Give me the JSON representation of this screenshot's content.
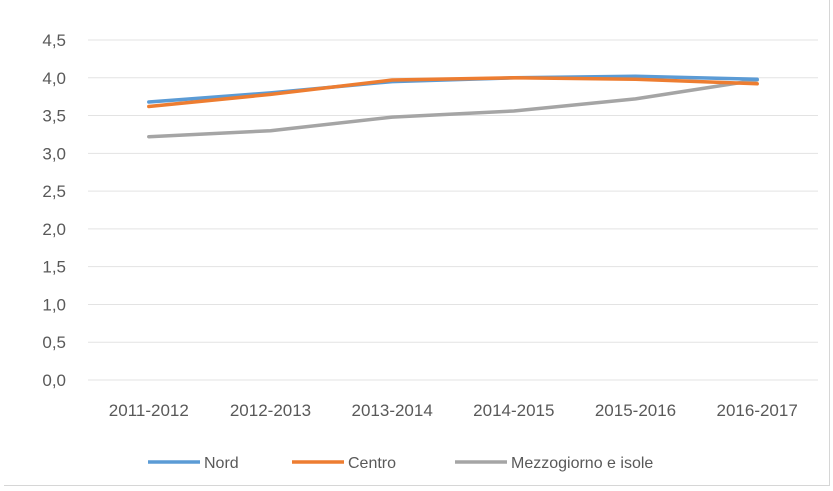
{
  "chart_data": {
    "type": "line",
    "title": "",
    "xlabel": "",
    "ylabel": "",
    "categories": [
      "2011-2012",
      "2012-2013",
      "2013-2014",
      "2014-2015",
      "2015-2016",
      "2016-2017"
    ],
    "y_ticks": [
      "0,0",
      "0,5",
      "1,0",
      "1,5",
      "2,0",
      "2,5",
      "3,0",
      "3,5",
      "4,0",
      "4,5"
    ],
    "ylim": [
      0,
      4.5
    ],
    "grid": true,
    "legend_position": "bottom",
    "series": [
      {
        "name": "Nord",
        "color": "#5b9bd5",
        "values": [
          3.68,
          3.8,
          3.95,
          4.0,
          4.02,
          3.98
        ]
      },
      {
        "name": "Centro",
        "color": "#ed7d31",
        "values": [
          3.62,
          3.78,
          3.97,
          4.0,
          3.98,
          3.92
        ]
      },
      {
        "name": "Mezzogiorno e isole",
        "color": "#a5a5a5",
        "values": [
          3.22,
          3.3,
          3.48,
          3.56,
          3.72,
          3.97
        ]
      }
    ]
  }
}
